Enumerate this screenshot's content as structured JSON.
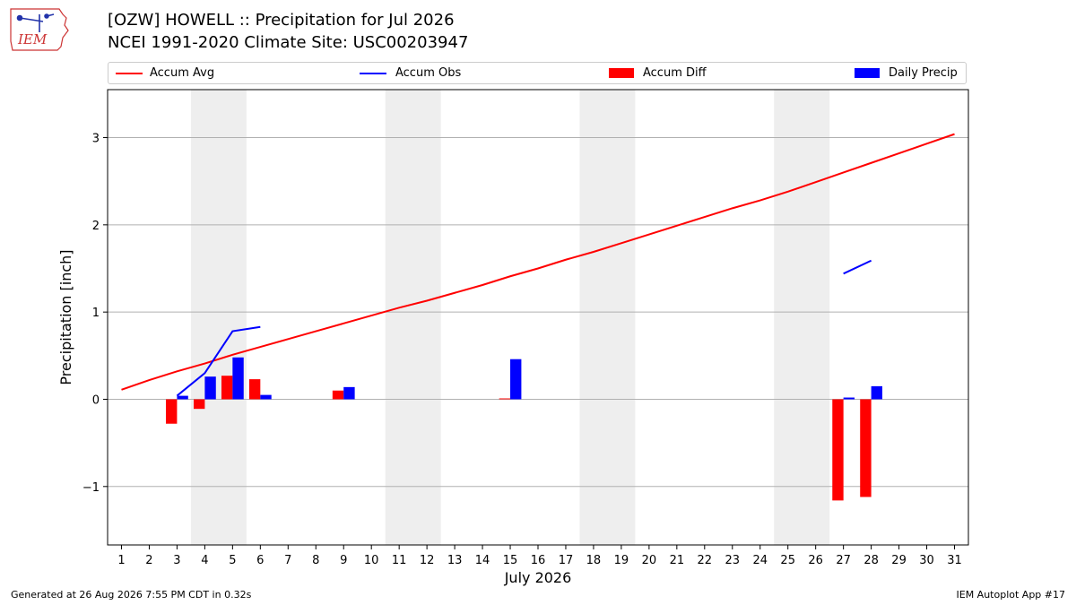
{
  "header": {
    "title_line1": "[OZW] HOWELL :: Precipitation for Jul 2026",
    "title_line2": "NCEI 1991-2020 Climate Site: USC00203947"
  },
  "logo": {
    "text": "IEM",
    "icon": "iem-iowa-logo",
    "color": "#cc3333"
  },
  "legend": {
    "position": "top",
    "items": [
      {
        "label": "Accum Avg",
        "kind": "line",
        "color": "#ff0000"
      },
      {
        "label": "Accum Obs",
        "kind": "line",
        "color": "#0000ff"
      },
      {
        "label": "Accum Diff",
        "kind": "bar",
        "color": "#ff0000"
      },
      {
        "label": "Daily Precip",
        "kind": "bar",
        "color": "#0000ff"
      }
    ]
  },
  "footer": {
    "left": "Generated at 26 Aug 2026 7:55 PM CDT in 0.32s",
    "right": "IEM Autoplot App #17"
  },
  "chart_data": {
    "type": "bar",
    "title": "[OZW] HOWELL :: Precipitation for Jul 2026",
    "subtitle": "NCEI 1991-2020 Climate Site: USC00203947",
    "xlabel": "July 2026",
    "ylabel": "Precipitation [inch]",
    "x": [
      1,
      2,
      3,
      4,
      5,
      6,
      7,
      8,
      9,
      10,
      11,
      12,
      13,
      14,
      15,
      16,
      17,
      18,
      19,
      20,
      21,
      22,
      23,
      24,
      25,
      26,
      27,
      28,
      29,
      30,
      31
    ],
    "xlim": [
      0.5,
      31.5
    ],
    "ylim": [
      -1.67,
      3.55
    ],
    "yticks": [
      -1,
      0,
      1,
      2,
      3
    ],
    "ytick_labels": [
      "−1",
      "0",
      "1",
      "2",
      "3"
    ],
    "grid": true,
    "weekend_shading": [
      [
        3.5,
        5.5
      ],
      [
        10.5,
        12.5
      ],
      [
        17.5,
        19.5
      ],
      [
        24.5,
        26.5
      ]
    ],
    "series": [
      {
        "name": "Accum Avg",
        "type": "line",
        "color": "#ff0000",
        "values": [
          0.11,
          0.22,
          0.32,
          0.41,
          0.51,
          0.6,
          0.69,
          0.78,
          0.87,
          0.96,
          1.05,
          1.13,
          1.22,
          1.31,
          1.41,
          1.5,
          1.6,
          1.69,
          1.79,
          1.89,
          1.99,
          2.09,
          2.19,
          2.28,
          2.38,
          2.49,
          2.6,
          2.71,
          2.82,
          2.93,
          3.04
        ]
      },
      {
        "name": "Accum Obs",
        "type": "line",
        "color": "#0000ff",
        "values": [
          null,
          null,
          0.04,
          0.3,
          0.78,
          0.83,
          null,
          null,
          null,
          null,
          null,
          null,
          null,
          null,
          null,
          null,
          null,
          null,
          null,
          null,
          null,
          null,
          null,
          null,
          null,
          null,
          1.44,
          1.59,
          null,
          null,
          null
        ]
      },
      {
        "name": "Accum Diff",
        "type": "bar",
        "color": "#ff0000",
        "values": [
          null,
          null,
          -0.28,
          -0.11,
          0.27,
          0.23,
          null,
          null,
          0.1,
          null,
          null,
          null,
          null,
          null,
          0.01,
          null,
          null,
          null,
          null,
          null,
          null,
          null,
          null,
          null,
          null,
          null,
          -1.16,
          -1.12,
          null,
          null,
          null
        ]
      },
      {
        "name": "Daily Precip",
        "type": "bar",
        "color": "#0000ff",
        "values": [
          null,
          null,
          0.04,
          0.26,
          0.48,
          0.05,
          null,
          null,
          0.14,
          null,
          null,
          null,
          null,
          null,
          0.46,
          null,
          null,
          null,
          null,
          null,
          null,
          null,
          null,
          null,
          null,
          null,
          0.02,
          0.15,
          null,
          null,
          null
        ]
      }
    ]
  }
}
